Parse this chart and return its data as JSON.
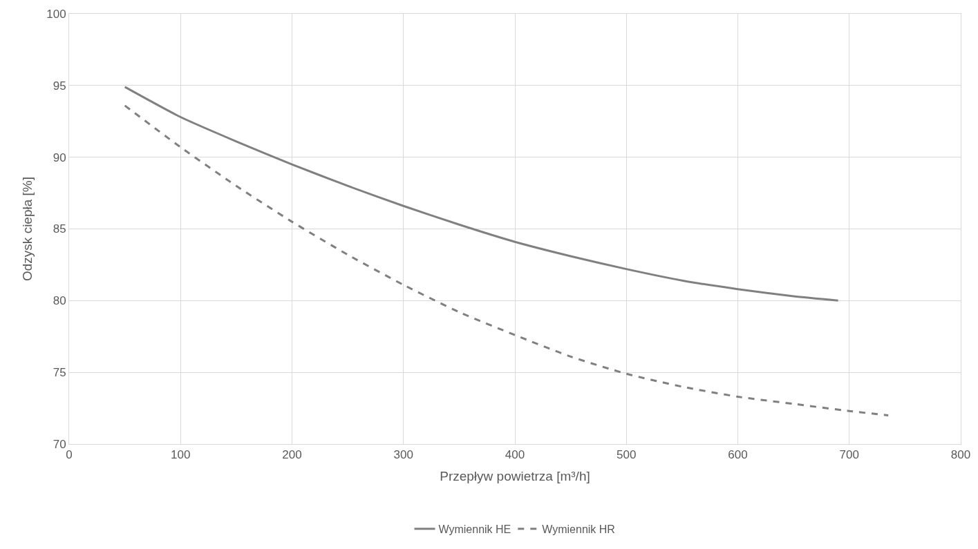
{
  "chart_data": {
    "type": "line",
    "xlabel": "Przepływ powietrza [m³/h]",
    "ylabel": "Odzysk ciepła [%]",
    "xlim": [
      0,
      800
    ],
    "xticks": [
      0,
      100,
      200,
      300,
      400,
      500,
      600,
      700,
      800
    ],
    "ylim": [
      70,
      100
    ],
    "yticks": [
      70,
      75,
      80,
      85,
      90,
      95,
      100
    ],
    "grid": true,
    "legend": "bottom",
    "marker": "none",
    "series": [
      {
        "name": "Wymiennik HE",
        "color": "#808080",
        "line_style": "solid",
        "x": [
          50,
          100,
          150,
          200,
          250,
          300,
          350,
          400,
          450,
          500,
          550,
          600,
          650,
          690
        ],
        "values": [
          94.9,
          92.8,
          91.1,
          89.5,
          88.0,
          86.6,
          85.3,
          84.1,
          83.1,
          82.2,
          81.4,
          80.8,
          80.3,
          80.0
        ]
      },
      {
        "name": "Wymiennik HR",
        "color": "#808080",
        "line_style": "dashed",
        "x": [
          50,
          100,
          150,
          200,
          250,
          300,
          350,
          400,
          450,
          500,
          550,
          600,
          650,
          700,
          735
        ],
        "values": [
          93.6,
          90.7,
          88.0,
          85.5,
          83.2,
          81.1,
          79.2,
          77.6,
          76.1,
          74.9,
          74.0,
          73.3,
          72.8,
          72.3,
          72.0
        ]
      }
    ]
  }
}
